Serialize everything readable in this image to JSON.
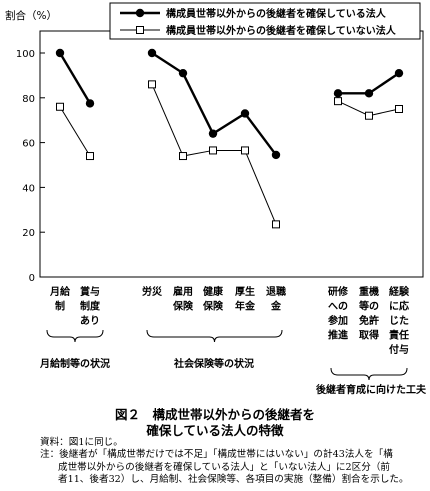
{
  "chart_data": {
    "type": "line",
    "ylabel": "割合（%）",
    "ylim": [
      0,
      110
    ],
    "yticks": [
      0,
      20,
      40,
      60,
      80,
      100
    ],
    "legend_position": "top-right",
    "categories": [
      "月給制",
      "賞与制度あり",
      "労災",
      "雇用保険",
      "健康保険",
      "厚生年金",
      "退職金",
      "研修への参加推進",
      "重機等の免許取得",
      "経験に応じた責任付与"
    ],
    "category_labels": [
      [
        "月給",
        "制"
      ],
      [
        "賞与",
        "制度",
        "あり"
      ],
      [
        "労災"
      ],
      [
        "雇用",
        "保険"
      ],
      [
        "健康",
        "保険"
      ],
      [
        "厚生",
        "年金"
      ],
      [
        "退職",
        "金"
      ],
      [
        "研修",
        "への",
        "参加",
        "推進"
      ],
      [
        "重機",
        "等の",
        "免許",
        "取得"
      ],
      [
        "経験",
        "に応",
        "じた",
        "責任",
        "付与"
      ]
    ],
    "groups": [
      {
        "name": "月給制等の状況",
        "indices": [
          0,
          1
        ]
      },
      {
        "name": "社会保険等の状況",
        "indices": [
          2,
          3,
          4,
          5,
          6
        ]
      },
      {
        "name": "後継者育成に向けた工夫",
        "indices": [
          7,
          8,
          9
        ]
      }
    ],
    "series": [
      {
        "name": "構成員世帯以外からの後継者を確保している法人",
        "marker": "filled-circle",
        "values": [
          100,
          77.5,
          100,
          91,
          64,
          73,
          54.5,
          82,
          82,
          91
        ]
      },
      {
        "name": "構成員世帯以外からの後継者を確保していない法人",
        "marker": "open-square",
        "values": [
          76,
          54,
          86,
          54,
          56.5,
          56.5,
          23.5,
          78.5,
          72,
          75
        ]
      }
    ]
  },
  "caption": {
    "line1": "図２　構成世帯以外からの後継者を",
    "line2": "確保している法人の特徴"
  },
  "notes": {
    "source": "資料：図1に同じ。",
    "note1": "注：後継者が「構成世帯だけでは不足」「構成世帯にはいない」の計43法人を「構",
    "note2": "成世帯以外からの後継者を確保している法人」と「いない法人」に2区分（前",
    "note3": "者11、後者32）し、月給制、社会保険等、各項目の実施（整備）割合を示した。"
  }
}
